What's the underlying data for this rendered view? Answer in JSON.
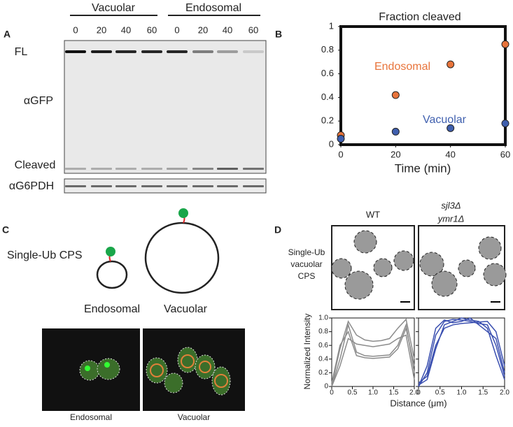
{
  "panel_a": {
    "label": "A",
    "groups": [
      "Vacuolar",
      "Endosomal"
    ],
    "lanes": [
      0,
      20,
      40,
      60,
      0,
      20,
      40,
      60
    ],
    "rows": [
      "FL",
      "αGFP",
      "Cleaved"
    ],
    "loading": "αG6PDH"
  },
  "panel_b": {
    "label": "B"
  },
  "panel_c": {
    "label": "C",
    "construct": "Single-Ub CPS",
    "cartoon_labels": [
      "Endosomal",
      "Vacuolar"
    ],
    "image_labels": [
      "Endosomal",
      "Vacuolar"
    ]
  },
  "panel_d": {
    "label": "D",
    "row_label": [
      "Single-Ub",
      "vacuolar",
      "CPS"
    ],
    "xlabel": "Distance (μm)",
    "ylabel": "Normalized Intensity"
  },
  "chart_data": [
    {
      "type": "scatter",
      "title": "Fraction cleaved",
      "xlabel": "Time (min)",
      "x": [
        0,
        20,
        40,
        60
      ],
      "series": [
        {
          "name": "Endosomal",
          "color": "#e8743b",
          "values": [
            0.08,
            0.42,
            0.68,
            0.85
          ]
        },
        {
          "name": "Vacuolar",
          "color": "#3f5fae",
          "values": [
            0.05,
            0.11,
            0.14,
            0.18
          ]
        }
      ],
      "xlim": [
        0,
        60
      ],
      "xticks": [
        0,
        20,
        40,
        60
      ],
      "ylim": [
        0,
        1
      ],
      "yticks": [
        0,
        0.2,
        0.4,
        0.6,
        0.8,
        1
      ]
    },
    {
      "type": "line",
      "title": [
        "WT"
      ],
      "x": [
        0,
        0.2,
        0.4,
        0.6,
        0.8,
        1,
        1.2,
        1.4,
        1.6,
        1.8,
        2
      ],
      "series": [
        {
          "color": "#8c8c8c",
          "values": [
            0.02,
            0.55,
            0.95,
            0.75,
            0.68,
            0.66,
            0.67,
            0.7,
            0.85,
            0.98,
            0.4
          ]
        },
        {
          "color": "#8c8c8c",
          "values": [
            0,
            0.4,
            0.9,
            0.5,
            0.45,
            0.44,
            0.45,
            0.46,
            0.6,
            0.9,
            0.2
          ]
        },
        {
          "color": "#8c8c8c",
          "values": [
            0.05,
            0.6,
            0.8,
            0.45,
            0.42,
            0.41,
            0.42,
            0.43,
            0.55,
            0.85,
            0.3
          ]
        },
        {
          "color": "#8c8c8c",
          "values": [
            0,
            0.3,
            0.7,
            0.62,
            0.6,
            0.58,
            0.6,
            0.62,
            0.7,
            0.75,
            0.1
          ]
        }
      ],
      "xlim": [
        0,
        2
      ],
      "xticks": [
        0,
        0.5,
        {
          "value": 1,
          "label": "1.0"
        },
        1.5,
        {
          "value": 2,
          "label": "2.0"
        }
      ],
      "ylim": [
        0,
        1
      ],
      "yticks": [
        0,
        0.2,
        0.4,
        0.6,
        0.8,
        {
          "value": 1,
          "label": "1.0"
        }
      ]
    },
    {
      "type": "line",
      "title": [
        "sjl3Δ",
        "ymr1Δ"
      ],
      "x": [
        0,
        0.2,
        0.4,
        0.6,
        0.8,
        1,
        1.2,
        1.4,
        1.6,
        1.8,
        2
      ],
      "series": [
        {
          "color": "#3a4fb0",
          "values": [
            0,
            0.2,
            0.75,
            0.95,
            0.98,
            0.97,
            0.95,
            0.92,
            0.9,
            0.6,
            0.15
          ]
        },
        {
          "color": "#3a4fb0",
          "values": [
            0.02,
            0.1,
            0.55,
            0.9,
            0.95,
            1,
            0.97,
            0.95,
            0.85,
            0.45,
            0.1
          ]
        },
        {
          "color": "#3a4fb0",
          "values": [
            0,
            0.3,
            0.85,
            0.97,
            0.93,
            0.95,
            1,
            0.9,
            0.8,
            0.7,
            0.2
          ]
        },
        {
          "color": "#3a4fb0",
          "values": [
            0.05,
            0.15,
            0.6,
            0.85,
            0.9,
            0.92,
            0.93,
            0.94,
            0.95,
            0.8,
            0.3
          ]
        }
      ],
      "xlim": [
        0,
        2
      ],
      "xticks": [
        0,
        0.5,
        {
          "value": 1,
          "label": "1.0"
        },
        1.5,
        {
          "value": 2,
          "label": "2.0"
        }
      ],
      "ylim": [
        0,
        1
      ],
      "yticks": [
        0,
        0.2,
        0.4,
        0.6,
        0.8,
        {
          "value": 1,
          "label": "1.0"
        }
      ]
    }
  ]
}
